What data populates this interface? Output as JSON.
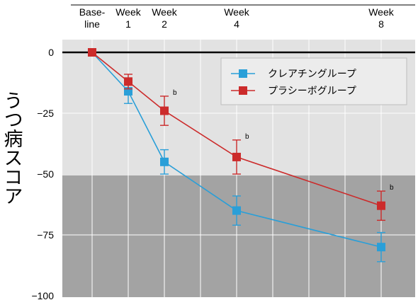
{
  "chart_data": {
    "type": "line",
    "ylabel": "うつ病スコア",
    "ylim": [
      -100,
      0
    ],
    "yticks": [
      0,
      -25,
      -50,
      -75,
      -100
    ],
    "x_labels": [
      {
        "week": 0,
        "line1": "Base-",
        "line2": "line"
      },
      {
        "week": 1,
        "line1": "Week",
        "line2": "1"
      },
      {
        "week": 2,
        "line1": "Week",
        "line2": "2"
      },
      {
        "week": 4,
        "line1": "Week",
        "line2": "4"
      },
      {
        "week": 8,
        "line1": "Week",
        "line2": "8"
      }
    ],
    "grid": true,
    "legend_position": "top-right",
    "series": [
      {
        "name": "クレアチングループ",
        "color": "#2a9fd8",
        "x": [
          0,
          1,
          2,
          4,
          8
        ],
        "values": [
          0,
          -16,
          -45,
          -65,
          -80
        ],
        "err_low": [
          0,
          -21,
          -50,
          -71,
          -86
        ],
        "err_high": [
          0,
          -11,
          -40,
          -59,
          -74
        ]
      },
      {
        "name": "プラシーボグループ",
        "color": "#cc2b2b",
        "x": [
          0,
          1,
          2,
          4,
          8
        ],
        "values": [
          0,
          -12,
          -24,
          -43,
          -63
        ],
        "err_low": [
          0,
          -15,
          -30,
          -50,
          -69
        ],
        "err_high": [
          0,
          -9,
          -18,
          -36,
          -57
        ]
      }
    ],
    "annotations": [
      {
        "text": "b",
        "x": 2,
        "y": -18
      },
      {
        "text": "b",
        "x": 4,
        "y": -36
      },
      {
        "text": "b",
        "x": 8,
        "y": -57
      }
    ]
  }
}
